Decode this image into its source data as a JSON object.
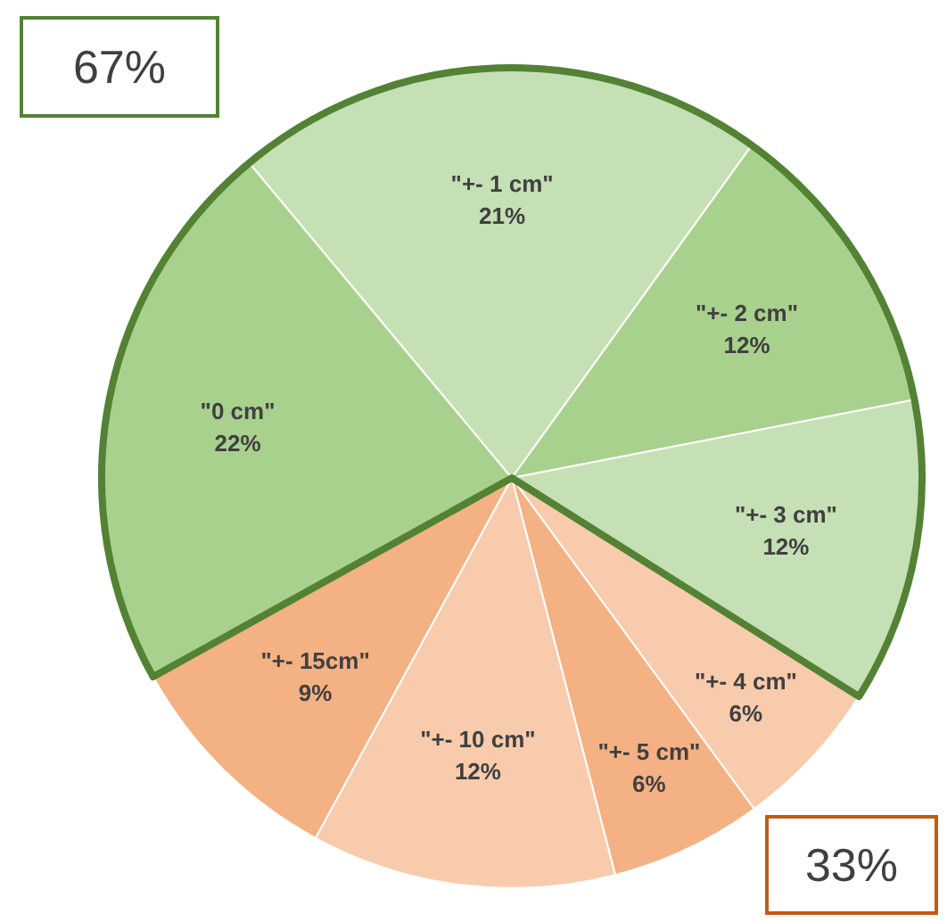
{
  "chart_data": {
    "type": "pie",
    "categories": [
      "\"0 cm\"",
      "\"+- 1 cm\"",
      "\"+- 2 cm\"",
      "\"+- 3 cm\"",
      "\"+- 4 cm\"",
      "\"+- 5 cm\"",
      "\"+- 10 cm\"",
      "\"+- 15cm\""
    ],
    "values": [
      22,
      21,
      12,
      12,
      6,
      6,
      12,
      9
    ],
    "colors": [
      "#a9d18e",
      "#c5e0b4",
      "#a9d18e",
      "#c5e0b4",
      "#f8cbad",
      "#f4b183",
      "#f8cbad",
      "#f4b183"
    ],
    "value_labels": [
      "22%",
      "21%",
      "12%",
      "12%",
      "6%",
      "6%",
      "12%",
      "9%"
    ],
    "annotations": [
      "67%",
      "33%"
    ]
  }
}
